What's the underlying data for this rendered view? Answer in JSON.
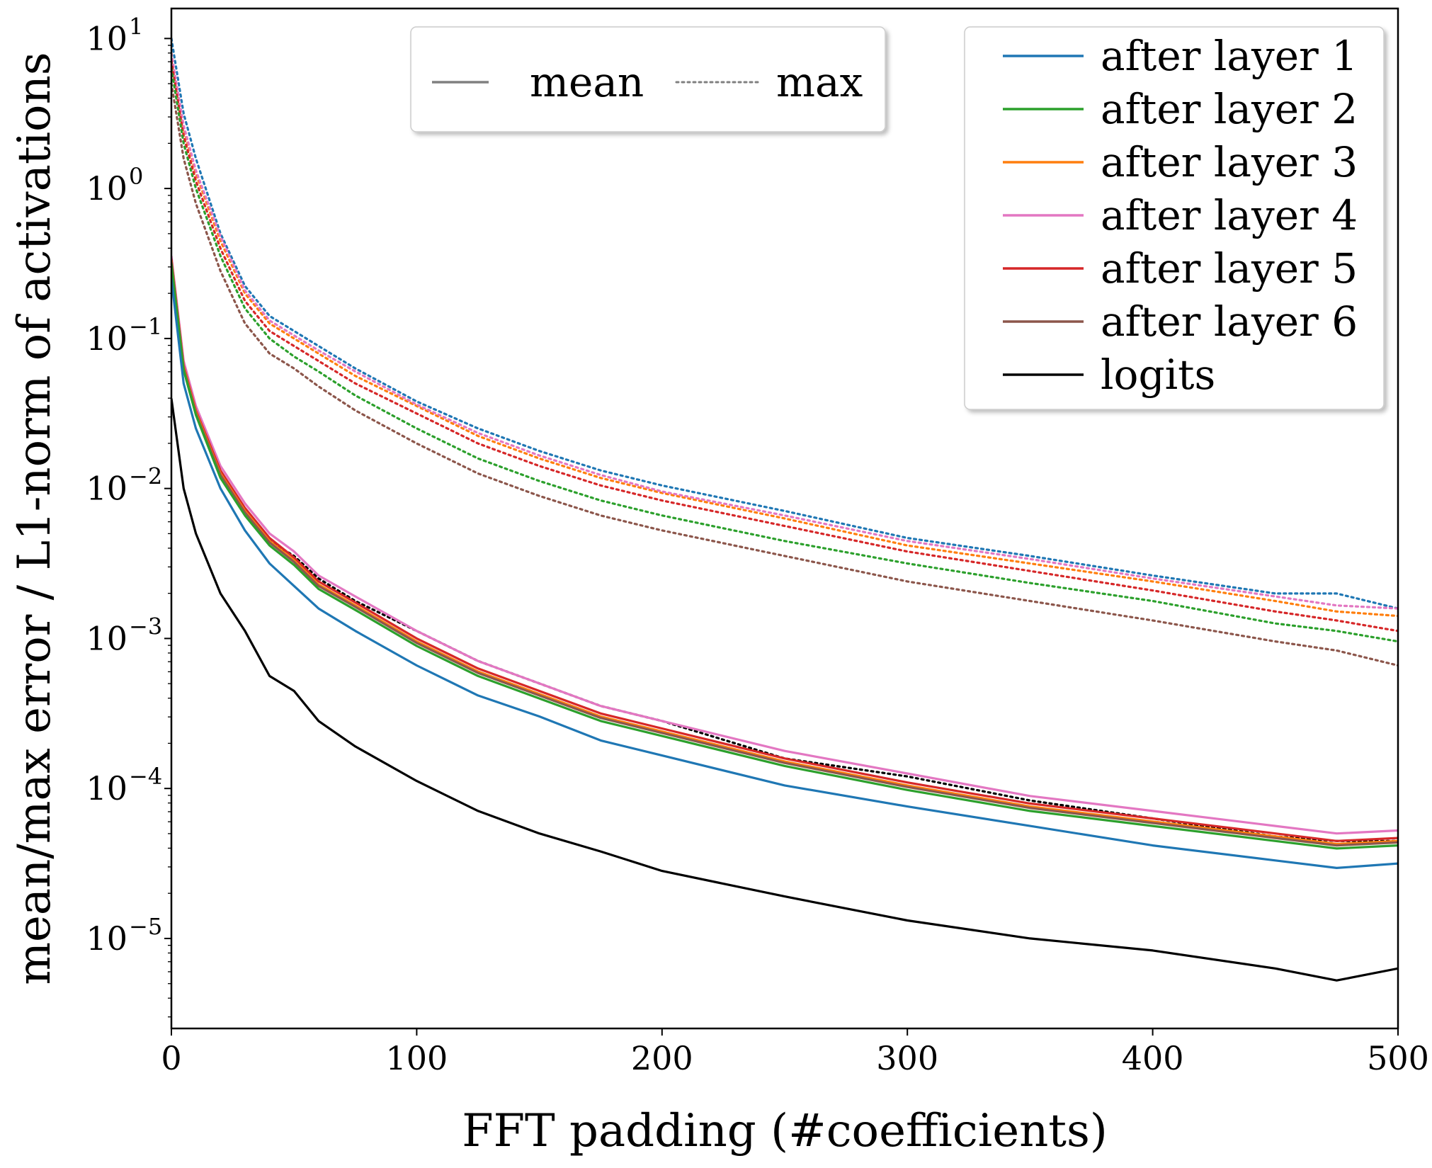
{
  "chart_data": {
    "type": "line",
    "xlabel": "FFT padding (#coefficients)",
    "ylabel": "mean/max error / L1-norm of activations",
    "xlim": [
      0,
      500
    ],
    "ylim_log10": [
      -5.6,
      1.2
    ],
    "xticks": [
      0,
      100,
      200,
      300,
      400,
      500
    ],
    "xtick_labels": [
      "0",
      "100",
      "200",
      "300",
      "400",
      "500"
    ],
    "yticks_log10": [
      1,
      0,
      -1,
      -2,
      -3,
      -4,
      -5
    ],
    "ytick_bases": [
      "10",
      "10",
      "10",
      "10",
      "10",
      "10",
      "10"
    ],
    "ytick_exponents": [
      "1",
      "0",
      "−1",
      "−2",
      "−3",
      "−4",
      "−5"
    ],
    "style_legend": {
      "position": "top-center",
      "entries": [
        {
          "label": "mean",
          "style": "solid",
          "color": "#808080"
        },
        {
          "label": "max",
          "style": "dotted",
          "color": "#808080"
        }
      ]
    },
    "series_legend": {
      "position": "top-right",
      "entries": [
        {
          "label": "after layer 1",
          "color": "#1f77b4"
        },
        {
          "label": "after layer 2",
          "color": "#2ca02c"
        },
        {
          "label": "after layer 3",
          "color": "#ff7f0e"
        },
        {
          "label": "after layer 4",
          "color": "#e377c2"
        },
        {
          "label": "after layer 5",
          "color": "#d62728"
        },
        {
          "label": "after layer 6",
          "color": "#8c564b"
        },
        {
          "label": "logits",
          "color": "#000000"
        }
      ]
    },
    "series": [
      {
        "name": "after layer 1 (max)",
        "style": "dotted",
        "color": "#1f77b4",
        "x": [
          0,
          5,
          10,
          20,
          30,
          40,
          50,
          60,
          75,
          100,
          125,
          150,
          175,
          200,
          250,
          300,
          350,
          400,
          450,
          475,
          500
        ],
        "log10_y": [
          1.0,
          0.5,
          0.2,
          -0.3,
          -0.65,
          -0.85,
          -0.95,
          -1.05,
          -1.2,
          -1.42,
          -1.6,
          -1.75,
          -1.88,
          -1.98,
          -2.15,
          -2.33,
          -2.45,
          -2.58,
          -2.7,
          -2.7,
          -2.8
        ]
      },
      {
        "name": "after layer 3 (max)",
        "style": "dotted",
        "color": "#ff7f0e",
        "x": [
          0,
          5,
          10,
          20,
          30,
          40,
          50,
          60,
          75,
          100,
          125,
          150,
          175,
          200,
          250,
          300,
          350,
          400,
          450,
          475,
          500
        ],
        "log10_y": [
          0.9,
          0.4,
          0.1,
          -0.35,
          -0.7,
          -0.9,
          -1.0,
          -1.1,
          -1.25,
          -1.45,
          -1.65,
          -1.8,
          -1.93,
          -2.03,
          -2.2,
          -2.38,
          -2.5,
          -2.62,
          -2.75,
          -2.82,
          -2.85
        ]
      },
      {
        "name": "after layer 4 (max)",
        "style": "dotted",
        "color": "#e377c2",
        "x": [
          0,
          5,
          10,
          20,
          30,
          40,
          50,
          60,
          75,
          100,
          125,
          150,
          175,
          200,
          250,
          300,
          350,
          400,
          450,
          475,
          500
        ],
        "log10_y": [
          0.9,
          0.42,
          0.12,
          -0.32,
          -0.68,
          -0.88,
          -0.98,
          -1.08,
          -1.22,
          -1.44,
          -1.63,
          -1.78,
          -1.91,
          -2.02,
          -2.18,
          -2.35,
          -2.47,
          -2.6,
          -2.72,
          -2.78,
          -2.8
        ]
      },
      {
        "name": "after layer 5 (max)",
        "style": "dotted",
        "color": "#d62728",
        "x": [
          0,
          5,
          10,
          20,
          30,
          40,
          50,
          60,
          75,
          100,
          125,
          150,
          175,
          200,
          250,
          300,
          350,
          400,
          450,
          475,
          500
        ],
        "log10_y": [
          0.85,
          0.35,
          0.05,
          -0.4,
          -0.75,
          -0.95,
          -1.05,
          -1.15,
          -1.3,
          -1.5,
          -1.7,
          -1.85,
          -1.98,
          -2.08,
          -2.25,
          -2.42,
          -2.55,
          -2.68,
          -2.82,
          -2.88,
          -2.95
        ]
      },
      {
        "name": "after layer 2 (max)",
        "style": "dotted",
        "color": "#2ca02c",
        "x": [
          0,
          5,
          10,
          20,
          30,
          40,
          50,
          60,
          75,
          100,
          125,
          150,
          175,
          200,
          250,
          300,
          350,
          400,
          450,
          475,
          500
        ],
        "log10_y": [
          0.8,
          0.3,
          0.0,
          -0.45,
          -0.8,
          -1.0,
          -1.12,
          -1.22,
          -1.38,
          -1.6,
          -1.8,
          -1.95,
          -2.08,
          -2.18,
          -2.35,
          -2.5,
          -2.63,
          -2.75,
          -2.9,
          -2.95,
          -3.02
        ]
      },
      {
        "name": "after layer 6 (max)",
        "style": "dotted",
        "color": "#8c564b",
        "x": [
          0,
          5,
          10,
          20,
          30,
          40,
          50,
          60,
          75,
          100,
          125,
          150,
          175,
          200,
          250,
          300,
          350,
          400,
          450,
          475,
          500
        ],
        "log10_y": [
          0.7,
          0.2,
          -0.1,
          -0.55,
          -0.9,
          -1.1,
          -1.2,
          -1.32,
          -1.48,
          -1.7,
          -1.9,
          -2.05,
          -2.18,
          -2.28,
          -2.45,
          -2.62,
          -2.75,
          -2.88,
          -3.02,
          -3.08,
          -3.18
        ]
      },
      {
        "name": "logits (max)",
        "style": "dotted",
        "color": "#000000",
        "x": [
          0,
          5,
          10,
          20,
          30,
          40,
          50,
          60,
          75,
          100,
          125,
          150,
          175,
          200,
          250,
          300,
          350,
          400,
          450,
          475,
          500
        ],
        "log10_y": [
          -0.5,
          -1.2,
          -1.5,
          -1.9,
          -2.15,
          -2.35,
          -2.45,
          -2.6,
          -2.75,
          -2.95,
          -3.15,
          -3.3,
          -3.45,
          -3.55,
          -3.8,
          -3.92,
          -4.08,
          -4.2,
          -4.32,
          -4.35,
          -4.35
        ]
      },
      {
        "name": "after layer 4 (mean)",
        "style": "solid",
        "color": "#e377c2",
        "x": [
          0,
          5,
          10,
          20,
          30,
          40,
          50,
          60,
          75,
          100,
          125,
          150,
          175,
          200,
          250,
          300,
          350,
          400,
          450,
          475,
          500
        ],
        "log10_y": [
          -0.45,
          -1.15,
          -1.45,
          -1.85,
          -2.1,
          -2.3,
          -2.42,
          -2.58,
          -2.72,
          -2.95,
          -3.15,
          -3.3,
          -3.45,
          -3.55,
          -3.75,
          -3.9,
          -4.05,
          -4.15,
          -4.25,
          -4.3,
          -4.28
        ]
      },
      {
        "name": "after layer 5 (mean)",
        "style": "solid",
        "color": "#d62728",
        "x": [
          0,
          5,
          10,
          20,
          30,
          40,
          50,
          60,
          75,
          100,
          125,
          150,
          175,
          200,
          250,
          300,
          350,
          400,
          450,
          475,
          500
        ],
        "log10_y": [
          -0.47,
          -1.18,
          -1.48,
          -1.88,
          -2.13,
          -2.33,
          -2.46,
          -2.62,
          -2.76,
          -3.0,
          -3.2,
          -3.35,
          -3.5,
          -3.6,
          -3.8,
          -3.96,
          -4.1,
          -4.2,
          -4.3,
          -4.35,
          -4.33
        ]
      },
      {
        "name": "after layer 3 (mean)",
        "style": "solid",
        "color": "#ff7f0e",
        "x": [
          0,
          5,
          10,
          20,
          30,
          40,
          50,
          60,
          75,
          100,
          125,
          150,
          175,
          200,
          250,
          300,
          350,
          400,
          450,
          475,
          500
        ],
        "log10_y": [
          -0.48,
          -1.19,
          -1.49,
          -1.9,
          -2.15,
          -2.35,
          -2.48,
          -2.64,
          -2.78,
          -3.02,
          -3.22,
          -3.37,
          -3.52,
          -3.62,
          -3.82,
          -3.98,
          -4.12,
          -4.22,
          -4.32,
          -4.37,
          -4.35
        ]
      },
      {
        "name": "after layer 6 (mean)",
        "style": "solid",
        "color": "#8c564b",
        "x": [
          0,
          5,
          10,
          20,
          30,
          40,
          50,
          60,
          75,
          100,
          125,
          150,
          175,
          200,
          250,
          300,
          350,
          400,
          450,
          475,
          500
        ],
        "log10_y": [
          -0.49,
          -1.2,
          -1.5,
          -1.91,
          -2.16,
          -2.36,
          -2.49,
          -2.65,
          -2.79,
          -3.03,
          -3.23,
          -3.38,
          -3.53,
          -3.63,
          -3.83,
          -3.99,
          -4.13,
          -4.23,
          -4.33,
          -4.38,
          -4.36
        ]
      },
      {
        "name": "after layer 2 (mean)",
        "style": "solid",
        "color": "#2ca02c",
        "x": [
          0,
          5,
          10,
          20,
          30,
          40,
          50,
          60,
          75,
          100,
          125,
          150,
          175,
          200,
          250,
          300,
          350,
          400,
          450,
          475,
          500
        ],
        "log10_y": [
          -0.5,
          -1.21,
          -1.51,
          -1.93,
          -2.18,
          -2.38,
          -2.51,
          -2.67,
          -2.81,
          -3.05,
          -3.25,
          -3.4,
          -3.55,
          -3.65,
          -3.85,
          -4.01,
          -4.15,
          -4.25,
          -4.35,
          -4.4,
          -4.38
        ]
      },
      {
        "name": "after layer 1 (mean)",
        "style": "solid",
        "color": "#1f77b4",
        "x": [
          0,
          5,
          10,
          20,
          30,
          40,
          50,
          60,
          75,
          100,
          125,
          150,
          175,
          200,
          250,
          300,
          350,
          400,
          450,
          475,
          500
        ],
        "log10_y": [
          -0.6,
          -1.3,
          -1.6,
          -2.0,
          -2.28,
          -2.5,
          -2.65,
          -2.8,
          -2.95,
          -3.18,
          -3.38,
          -3.52,
          -3.68,
          -3.78,
          -3.98,
          -4.12,
          -4.25,
          -4.38,
          -4.48,
          -4.53,
          -4.5
        ]
      },
      {
        "name": "logits (mean)",
        "style": "solid",
        "color": "#000000",
        "x": [
          0,
          5,
          10,
          20,
          30,
          40,
          50,
          60,
          75,
          100,
          125,
          150,
          175,
          200,
          250,
          300,
          350,
          400,
          450,
          475,
          500
        ],
        "log10_y": [
          -1.4,
          -2.0,
          -2.3,
          -2.7,
          -2.95,
          -3.25,
          -3.35,
          -3.55,
          -3.72,
          -3.95,
          -4.15,
          -4.3,
          -4.42,
          -4.55,
          -4.72,
          -4.88,
          -5.0,
          -5.08,
          -5.2,
          -5.28,
          -5.2
        ]
      }
    ]
  }
}
